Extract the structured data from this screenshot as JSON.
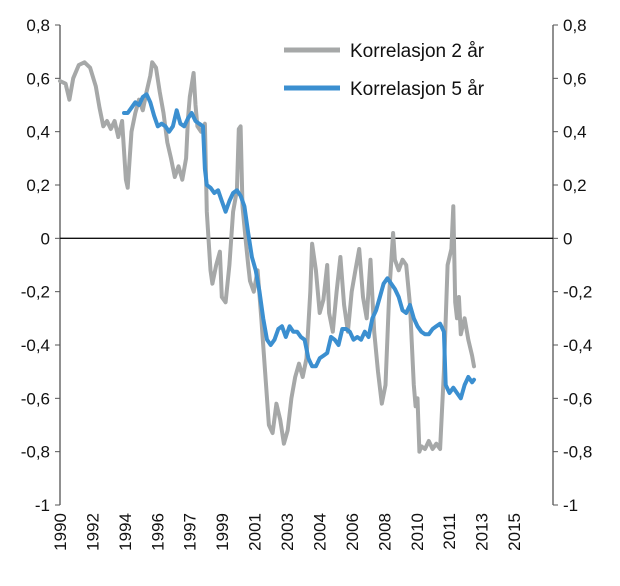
{
  "chart_data": {
    "type": "line",
    "x_axis": {
      "tick_labels": [
        "1990",
        "1992",
        "1994",
        "1996",
        "1997",
        "1999",
        "2001",
        "2003",
        "2004",
        "2006",
        "2008",
        "2010",
        "2011",
        "2013",
        "2015"
      ],
      "label_rotation": "vertical"
    },
    "y_left": {
      "ticks": [
        0.8,
        0.6,
        0.4,
        0.2,
        0,
        -0.2,
        -0.4,
        -0.6,
        -0.8,
        -1
      ],
      "tick_labels": [
        "0,8",
        "0,6",
        "0,4",
        "0,2",
        "0",
        "-0,2",
        "-0,4",
        "-0,6",
        "-0,8",
        "-1"
      ],
      "ylim": [
        -1,
        0.8
      ]
    },
    "y_right": {
      "ticks": [
        0.8,
        0.6,
        0.4,
        0.2,
        0,
        -0.2,
        -0.4,
        -0.6,
        -0.8,
        -1
      ],
      "tick_labels": [
        "0,8",
        "0,6",
        "0,4",
        "0,2",
        "0",
        "-0,2",
        "-0,4",
        "-0,6",
        "-0,8",
        "-1"
      ],
      "ylim": [
        -1,
        0.8
      ]
    },
    "xlim": [
      1990.0,
      2016.2
    ],
    "legend_position": "top-right",
    "series": [
      {
        "name": "Korrelasjon 2 år",
        "color": "#a6a8a8",
        "points": [
          [
            1990.0,
            0.59
          ],
          [
            1990.3,
            0.58
          ],
          [
            1990.5,
            0.52
          ],
          [
            1990.7,
            0.6
          ],
          [
            1991.0,
            0.65
          ],
          [
            1991.3,
            0.66
          ],
          [
            1991.6,
            0.64
          ],
          [
            1991.9,
            0.57
          ],
          [
            1992.1,
            0.49
          ],
          [
            1992.3,
            0.42
          ],
          [
            1992.5,
            0.44
          ],
          [
            1992.7,
            0.41
          ],
          [
            1992.9,
            0.44
          ],
          [
            1993.1,
            0.38
          ],
          [
            1993.3,
            0.44
          ],
          [
            1993.5,
            0.22
          ],
          [
            1993.6,
            0.19
          ],
          [
            1993.8,
            0.4
          ],
          [
            1994.0,
            0.47
          ],
          [
            1994.2,
            0.52
          ],
          [
            1994.4,
            0.48
          ],
          [
            1994.6,
            0.55
          ],
          [
            1994.8,
            0.61
          ],
          [
            1994.9,
            0.66
          ],
          [
            1995.1,
            0.64
          ],
          [
            1995.3,
            0.55
          ],
          [
            1995.5,
            0.47
          ],
          [
            1995.7,
            0.36
          ],
          [
            1995.9,
            0.3
          ],
          [
            1996.1,
            0.23
          ],
          [
            1996.3,
            0.27
          ],
          [
            1996.5,
            0.22
          ],
          [
            1996.7,
            0.3
          ],
          [
            1996.8,
            0.45
          ],
          [
            1996.9,
            0.53
          ],
          [
            1997.1,
            0.62
          ],
          [
            1997.2,
            0.5
          ],
          [
            1997.3,
            0.42
          ],
          [
            1997.5,
            0.4
          ],
          [
            1997.7,
            0.43
          ],
          [
            1997.8,
            0.1
          ],
          [
            1998.0,
            -0.12
          ],
          [
            1998.1,
            -0.17
          ],
          [
            1998.3,
            -0.1
          ],
          [
            1998.5,
            -0.05
          ],
          [
            1998.6,
            -0.22
          ],
          [
            1998.8,
            -0.24
          ],
          [
            1999.0,
            -0.1
          ],
          [
            1999.2,
            0.1
          ],
          [
            1999.4,
            0.18
          ],
          [
            1999.5,
            0.41
          ],
          [
            1999.6,
            0.42
          ],
          [
            1999.7,
            0.12
          ],
          [
            1999.9,
            -0.03
          ],
          [
            2000.0,
            -0.1
          ],
          [
            2000.1,
            -0.16
          ],
          [
            2000.3,
            -0.2
          ],
          [
            2000.5,
            -0.12
          ],
          [
            2000.7,
            -0.3
          ],
          [
            2000.9,
            -0.5
          ],
          [
            2001.1,
            -0.7
          ],
          [
            2001.3,
            -0.73
          ],
          [
            2001.5,
            -0.62
          ],
          [
            2001.7,
            -0.68
          ],
          [
            2001.9,
            -0.77
          ],
          [
            2002.1,
            -0.72
          ],
          [
            2002.3,
            -0.6
          ],
          [
            2002.5,
            -0.52
          ],
          [
            2002.7,
            -0.47
          ],
          [
            2002.9,
            -0.52
          ],
          [
            2003.1,
            -0.45
          ],
          [
            2003.3,
            -0.2
          ],
          [
            2003.4,
            -0.02
          ],
          [
            2003.6,
            -0.12
          ],
          [
            2003.8,
            -0.28
          ],
          [
            2004.0,
            -0.23
          ],
          [
            2004.2,
            -0.1
          ],
          [
            2004.3,
            -0.28
          ],
          [
            2004.5,
            -0.35
          ],
          [
            2004.7,
            -0.2
          ],
          [
            2004.9,
            -0.07
          ],
          [
            2005.1,
            -0.25
          ],
          [
            2005.3,
            -0.35
          ],
          [
            2005.5,
            -0.2
          ],
          [
            2005.7,
            -0.12
          ],
          [
            2005.9,
            -0.04
          ],
          [
            2006.1,
            -0.22
          ],
          [
            2006.3,
            -0.3
          ],
          [
            2006.5,
            -0.08
          ],
          [
            2006.7,
            -0.35
          ],
          [
            2006.9,
            -0.5
          ],
          [
            2007.1,
            -0.62
          ],
          [
            2007.3,
            -0.55
          ],
          [
            2007.5,
            -0.2
          ],
          [
            2007.7,
            0.02
          ],
          [
            2007.8,
            -0.08
          ],
          [
            2008.0,
            -0.12
          ],
          [
            2008.2,
            -0.08
          ],
          [
            2008.4,
            -0.1
          ],
          [
            2008.6,
            -0.25
          ],
          [
            2008.8,
            -0.55
          ],
          [
            2008.9,
            -0.63
          ],
          [
            2009.0,
            -0.6
          ],
          [
            2009.1,
            -0.8
          ],
          [
            2009.2,
            -0.78
          ],
          [
            2009.4,
            -0.79
          ],
          [
            2009.6,
            -0.76
          ],
          [
            2009.8,
            -0.79
          ],
          [
            2010.0,
            -0.77
          ],
          [
            2010.2,
            -0.79
          ],
          [
            2010.4,
            -0.5
          ],
          [
            2010.6,
            -0.1
          ],
          [
            2010.8,
            -0.04
          ],
          [
            2010.9,
            0.12
          ],
          [
            2011.0,
            -0.24
          ],
          [
            2011.1,
            -0.3
          ],
          [
            2011.2,
            -0.22
          ],
          [
            2011.3,
            -0.36
          ],
          [
            2011.5,
            -0.3
          ],
          [
            2011.7,
            -0.38
          ],
          [
            2011.9,
            -0.44
          ],
          [
            2012.0,
            -0.48
          ]
        ]
      },
      {
        "name": "Korrelasjon 5 år",
        "color": "#3b8fd0",
        "points": [
          [
            1993.4,
            0.47
          ],
          [
            1993.6,
            0.47
          ],
          [
            1993.8,
            0.49
          ],
          [
            1994.0,
            0.51
          ],
          [
            1994.2,
            0.5
          ],
          [
            1994.4,
            0.53
          ],
          [
            1994.6,
            0.54
          ],
          [
            1994.8,
            0.51
          ],
          [
            1995.0,
            0.46
          ],
          [
            1995.2,
            0.42
          ],
          [
            1995.4,
            0.43
          ],
          [
            1995.6,
            0.42
          ],
          [
            1995.8,
            0.4
          ],
          [
            1996.0,
            0.42
          ],
          [
            1996.2,
            0.48
          ],
          [
            1996.4,
            0.43
          ],
          [
            1996.6,
            0.42
          ],
          [
            1996.8,
            0.45
          ],
          [
            1997.0,
            0.47
          ],
          [
            1997.2,
            0.44
          ],
          [
            1997.4,
            0.43
          ],
          [
            1997.6,
            0.42
          ],
          [
            1997.7,
            0.26
          ],
          [
            1997.8,
            0.2
          ],
          [
            1998.0,
            0.19
          ],
          [
            1998.2,
            0.17
          ],
          [
            1998.4,
            0.18
          ],
          [
            1998.6,
            0.14
          ],
          [
            1998.8,
            0.1
          ],
          [
            1999.0,
            0.14
          ],
          [
            1999.2,
            0.17
          ],
          [
            1999.4,
            0.18
          ],
          [
            1999.6,
            0.16
          ],
          [
            1999.8,
            0.12
          ],
          [
            2000.0,
            0.02
          ],
          [
            2000.2,
            -0.07
          ],
          [
            2000.4,
            -0.12
          ],
          [
            2000.6,
            -0.2
          ],
          [
            2000.8,
            -0.3
          ],
          [
            2001.0,
            -0.38
          ],
          [
            2001.2,
            -0.4
          ],
          [
            2001.4,
            -0.38
          ],
          [
            2001.6,
            -0.34
          ],
          [
            2001.8,
            -0.33
          ],
          [
            2002.0,
            -0.37
          ],
          [
            2002.2,
            -0.33
          ],
          [
            2002.4,
            -0.35
          ],
          [
            2002.6,
            -0.35
          ],
          [
            2002.8,
            -0.37
          ],
          [
            2003.0,
            -0.38
          ],
          [
            2003.2,
            -0.45
          ],
          [
            2003.4,
            -0.48
          ],
          [
            2003.6,
            -0.48
          ],
          [
            2003.8,
            -0.45
          ],
          [
            2004.0,
            -0.44
          ],
          [
            2004.2,
            -0.43
          ],
          [
            2004.4,
            -0.37
          ],
          [
            2004.6,
            -0.38
          ],
          [
            2004.8,
            -0.4
          ],
          [
            2005.0,
            -0.34
          ],
          [
            2005.2,
            -0.34
          ],
          [
            2005.4,
            -0.35
          ],
          [
            2005.6,
            -0.38
          ],
          [
            2005.8,
            -0.37
          ],
          [
            2006.0,
            -0.38
          ],
          [
            2006.2,
            -0.35
          ],
          [
            2006.4,
            -0.37
          ],
          [
            2006.6,
            -0.3
          ],
          [
            2006.8,
            -0.27
          ],
          [
            2007.0,
            -0.22
          ],
          [
            2007.2,
            -0.17
          ],
          [
            2007.4,
            -0.15
          ],
          [
            2007.6,
            -0.17
          ],
          [
            2007.8,
            -0.19
          ],
          [
            2008.0,
            -0.22
          ],
          [
            2008.2,
            -0.27
          ],
          [
            2008.4,
            -0.28
          ],
          [
            2008.6,
            -0.25
          ],
          [
            2008.8,
            -0.3
          ],
          [
            2009.0,
            -0.33
          ],
          [
            2009.2,
            -0.35
          ],
          [
            2009.4,
            -0.36
          ],
          [
            2009.6,
            -0.36
          ],
          [
            2009.8,
            -0.34
          ],
          [
            2010.0,
            -0.33
          ],
          [
            2010.2,
            -0.32
          ],
          [
            2010.4,
            -0.35
          ],
          [
            2010.5,
            -0.55
          ],
          [
            2010.7,
            -0.58
          ],
          [
            2010.9,
            -0.56
          ],
          [
            2011.1,
            -0.58
          ],
          [
            2011.3,
            -0.6
          ],
          [
            2011.5,
            -0.55
          ],
          [
            2011.7,
            -0.52
          ],
          [
            2011.9,
            -0.54
          ],
          [
            2012.0,
            -0.53
          ]
        ]
      }
    ]
  }
}
